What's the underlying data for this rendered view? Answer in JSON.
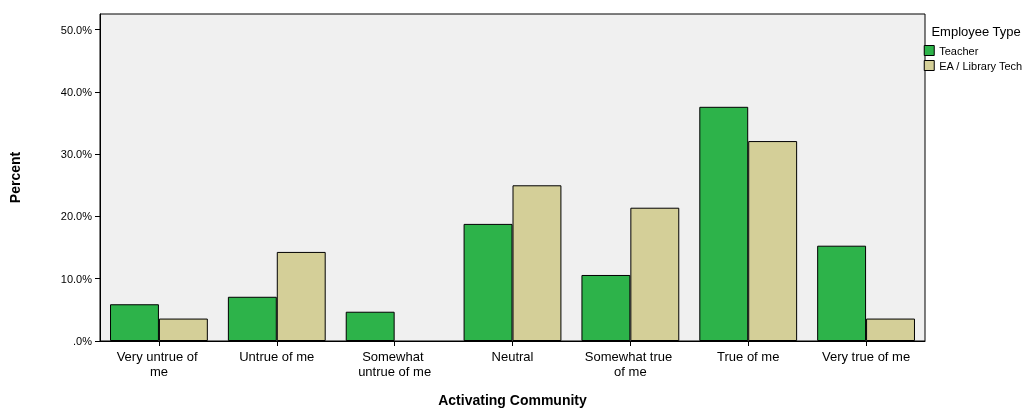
{
  "chart_data": {
    "type": "bar",
    "xlabel": "Activating Community",
    "ylabel": "Percent",
    "legend_title": "Employee Type",
    "categories": [
      "Very untrue of me",
      "Untrue of me",
      "Somewhat untrue of me",
      "Neutral",
      "Somewhat true of me",
      "True of me",
      "Very true of me"
    ],
    "series": [
      {
        "name": "Teacher",
        "color": "#2db34a",
        "values": [
          5.9,
          7.1,
          4.7,
          18.8,
          10.6,
          37.6,
          15.3
        ]
      },
      {
        "name": "EA / Library Tech",
        "color": "#d4cf98",
        "values": [
          3.6,
          14.3,
          0,
          25.0,
          21.4,
          32.1,
          3.6
        ]
      }
    ],
    "ylim": [
      0,
      52.5
    ],
    "yticks": [
      {
        "value": 0,
        "label": ".0%"
      },
      {
        "value": 10,
        "label": "10.0%"
      },
      {
        "value": 20,
        "label": "20.0%"
      },
      {
        "value": 30,
        "label": "30.0%"
      },
      {
        "value": 40,
        "label": "40.0%"
      },
      {
        "value": 50,
        "label": "50.0%"
      }
    ],
    "grid": false,
    "legend": "top right"
  }
}
